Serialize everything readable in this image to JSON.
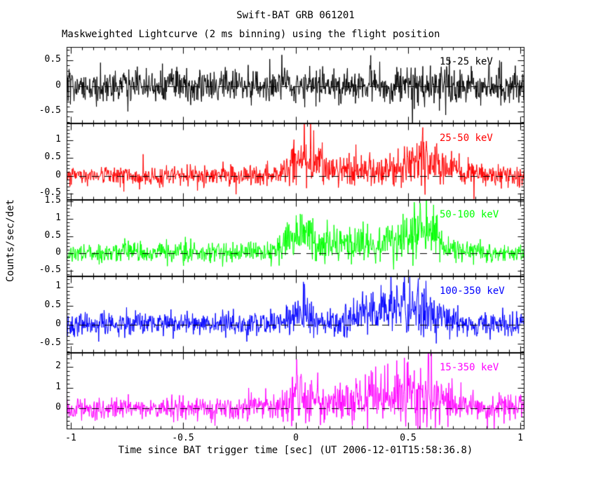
{
  "chart_data": {
    "type": "line",
    "title": "Swift-BAT GRB 061201",
    "subtitle": "Maskweighted Lightcurve (2 ms binning) using the flight position",
    "xlabel": "Time since BAT trigger time [sec] (UT 2006-12-01T15:58:36.8)",
    "ylabel": "Counts/sec/det",
    "x_range": [
      -1.02,
      1.02
    ],
    "x_ticks": [
      -1,
      -0.5,
      0,
      0.5,
      1
    ],
    "x_minor_step": 0.05,
    "bin_seconds": 0.002,
    "grid": false,
    "background_color": "#ffffff",
    "frame_color": "#000000",
    "zero_line": {
      "style": "dashed",
      "color": "#000000",
      "y": 0
    },
    "panels": [
      {
        "label": "15-25 keV",
        "color": "#000000",
        "y_range": [
          -0.73,
          0.76
        ],
        "y_ticks": [
          -0.5,
          0,
          0.5
        ],
        "y_minor_step": 0.1,
        "noise_sigma": 0.17,
        "seed": 101,
        "bursts": [
          {
            "t": 0.35,
            "w": 0.4,
            "amp": 0.05
          }
        ],
        "events": [
          {
            "t": 0.52,
            "v": -0.88
          }
        ]
      },
      {
        "label": "25-50 keV",
        "color": "#ff0000",
        "y_range": [
          -0.68,
          1.47
        ],
        "y_ticks": [
          -0.5,
          0,
          0.5,
          1
        ],
        "y_minor_step": 0.1,
        "noise_sigma": 0.14,
        "seed": 202,
        "bursts": [
          {
            "t": 0.02,
            "w": 0.05,
            "amp": 0.8
          },
          {
            "t": 0.1,
            "w": 0.04,
            "amp": 0.4
          },
          {
            "t": 0.3,
            "w": 0.1,
            "amp": 0.2
          },
          {
            "t": 0.45,
            "w": 0.25,
            "amp": 0.25
          },
          {
            "t": 0.58,
            "w": 0.06,
            "amp": 0.9
          }
        ],
        "events": []
      },
      {
        "label": "50-100 keV",
        "color": "#00ff00",
        "y_range": [
          -0.66,
          1.54
        ],
        "y_ticks": [
          -0.5,
          0,
          0.5,
          1,
          1.5
        ],
        "y_minor_step": 0.1,
        "noise_sigma": 0.14,
        "seed": 303,
        "bursts": [
          {
            "t": -0.75,
            "w": 0.03,
            "amp": 0.3
          },
          {
            "t": 0.01,
            "w": 0.04,
            "amp": 1.2
          },
          {
            "t": 0.13,
            "w": 0.05,
            "amp": 0.4
          },
          {
            "t": 0.27,
            "w": 0.06,
            "amp": 0.5
          },
          {
            "t": 0.35,
            "w": 0.3,
            "amp": 0.2
          },
          {
            "t": 0.42,
            "w": 0.05,
            "amp": 0.55
          },
          {
            "t": 0.57,
            "w": 0.06,
            "amp": 1.15
          }
        ],
        "events": []
      },
      {
        "label": "100-350 keV",
        "color": "#0000ff",
        "y_range": [
          -0.74,
          1.28
        ],
        "y_ticks": [
          -0.5,
          0,
          0.5,
          1
        ],
        "y_minor_step": 0.1,
        "noise_sigma": 0.15,
        "seed": 404,
        "bursts": [
          {
            "t": -0.85,
            "w": 0.02,
            "amp": 0.35
          },
          {
            "t": 0.02,
            "w": 0.04,
            "amp": 0.75
          },
          {
            "t": 0.3,
            "w": 0.3,
            "amp": 0.15
          },
          {
            "t": 0.35,
            "w": 0.08,
            "amp": 0.5
          },
          {
            "t": 0.5,
            "w": 0.09,
            "amp": 0.55
          },
          {
            "t": 0.62,
            "w": 0.05,
            "amp": 0.45
          }
        ],
        "events": []
      },
      {
        "label": "15-350 keV",
        "color": "#ff00ff",
        "y_range": [
          -0.99,
          2.66
        ],
        "y_ticks": [
          0,
          1,
          2
        ],
        "y_minor_step": 0.2,
        "noise_sigma": 0.27,
        "seed": 505,
        "bursts": [
          {
            "t": 0.02,
            "w": 0.05,
            "amp": 1.3
          },
          {
            "t": 0.3,
            "w": 0.07,
            "amp": 0.7
          },
          {
            "t": 0.35,
            "w": 0.35,
            "amp": 0.35
          },
          {
            "t": 0.45,
            "w": 0.06,
            "amp": 0.8
          },
          {
            "t": 0.58,
            "w": 0.07,
            "amp": 1.3
          }
        ],
        "events": []
      }
    ]
  }
}
